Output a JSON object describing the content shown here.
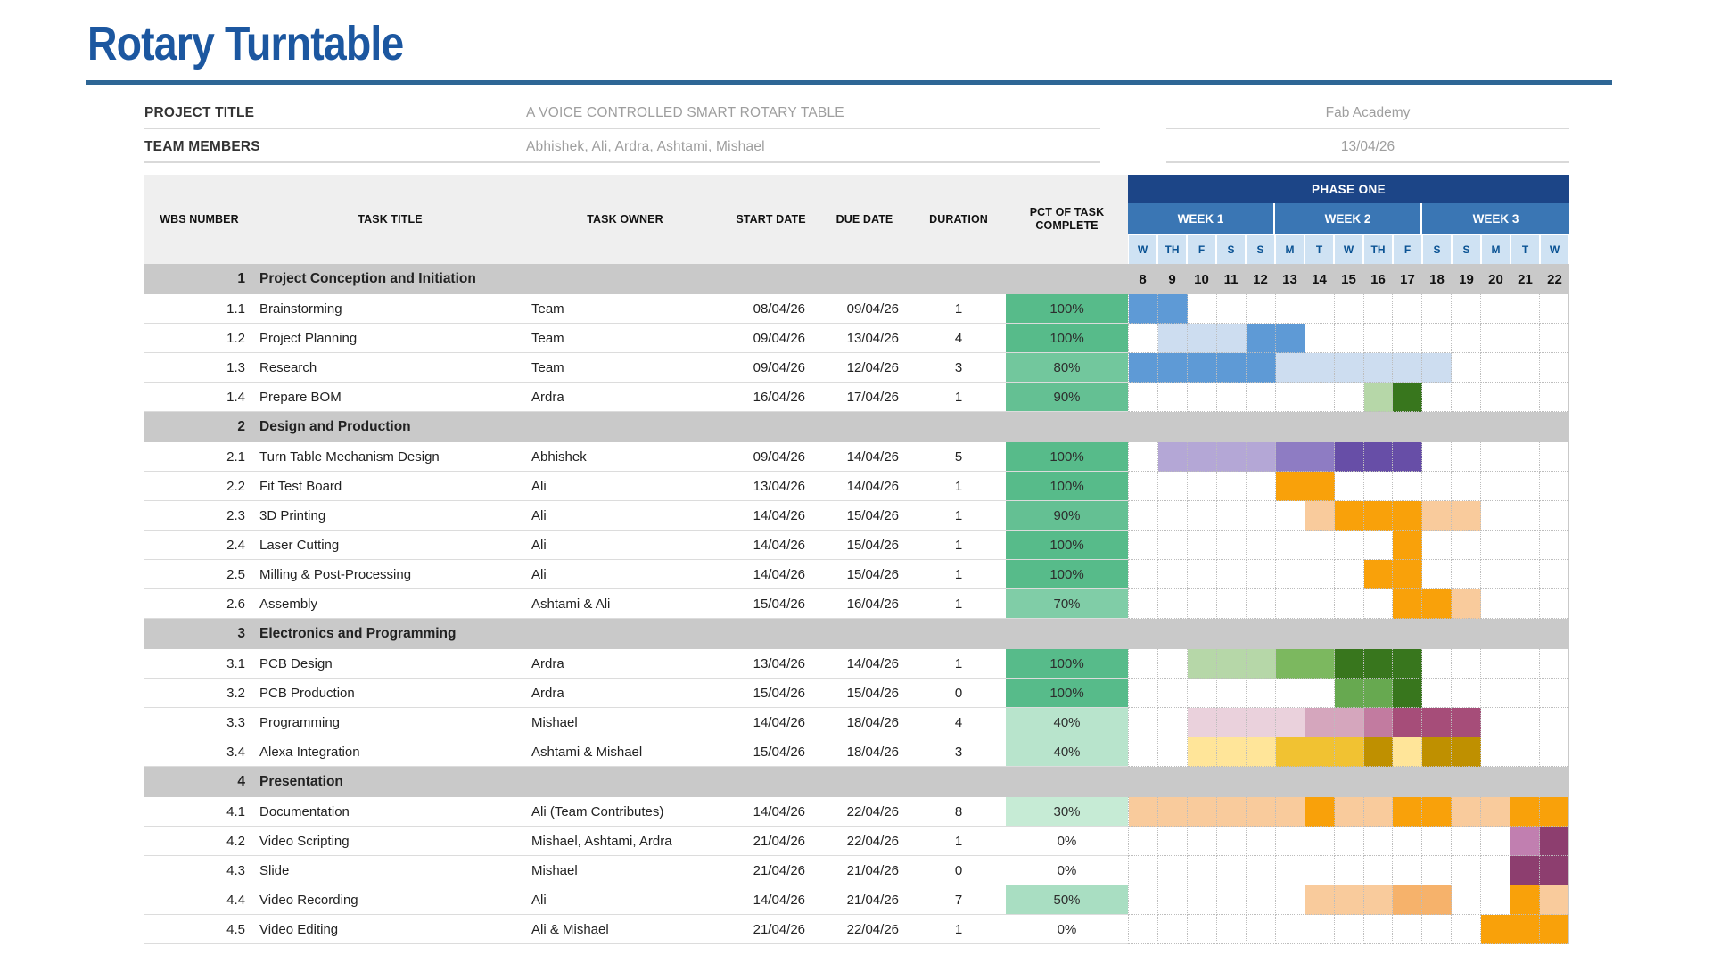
{
  "page": {
    "title": "Rotary Turntable",
    "accent_color": "#1c57a0",
    "rule_color": "#2e6695"
  },
  "info": {
    "rows": [
      {
        "label": "PROJECT TITLE",
        "value": "A VOICE CONTROLLED SMART ROTARY TABLE",
        "right_value": "Fab Academy"
      },
      {
        "label": "TEAM MEMBERS",
        "value": "Abhishek, Ali, Ardra, Ashtami, Mishael",
        "right_value": "13/04/26"
      }
    ]
  },
  "table": {
    "columns": [
      "WBS NUMBER",
      "TASK TITLE",
      "TASK OWNER",
      "START DATE",
      "DUE DATE",
      "DURATION",
      "PCT OF TASK COMPLETE"
    ],
    "gantt": {
      "phase": "PHASE ONE",
      "weeks": [
        "WEEK 1",
        "WEEK 2",
        "WEEK 3"
      ],
      "days": [
        "W",
        "TH",
        "F",
        "S",
        "S",
        "M",
        "T",
        "W",
        "TH",
        "F",
        "S",
        "S",
        "M",
        "T",
        "W"
      ],
      "dates": [
        8,
        9,
        10,
        11,
        12,
        13,
        14,
        15,
        16,
        17,
        18,
        19,
        20,
        21,
        22
      ],
      "header_colors": {
        "phase_bg": "#1c4587",
        "week_bg": "#3a76b4",
        "day_bg": "#cfe2f3",
        "day_text": "#0b5394"
      }
    },
    "palette": {
      "blue": "#5e9ad6",
      "blue_light": "#cdddf0",
      "green_light": "#b6d7a8",
      "green_mid": "#7cb85f",
      "green": "#67a950",
      "green_dark": "#38761d",
      "purple_light": "#b4a7d6",
      "purple_mid": "#8e7cc3",
      "purple_dark": "#674ea7",
      "orange": "#f9a10a",
      "orange_light": "#f9cb9c",
      "orange_mid": "#f6b26b",
      "pink_light": "#ead1dc",
      "pink_mid": "#d5a6bd",
      "pink": "#c27ba0",
      "magenta": "#a64d79",
      "yellow_light": "#ffe599",
      "yellow": "#f1c232",
      "gold": "#bf9000",
      "plum_light": "#c17fb0",
      "plum": "#8d3e6f"
    },
    "pct_colors": {
      "100%": "#57bb8a",
      "90%": "#64c093",
      "80%": "#72c79d",
      "70%": "#80cda7",
      "50%": "#a9dec2",
      "40%": "#b8e4cc",
      "30%": "#c6ebd5",
      "0%": "#ffffff"
    },
    "band_bg": "#c9c9c9",
    "sections": [
      {
        "num": "1",
        "title": "Project Conception and Initiation",
        "show_dates": true,
        "rows": [
          {
            "wbs": "1.1",
            "title": "Brainstorming",
            "owner": "Team",
            "start": "08/04/26",
            "due": "09/04/26",
            "duration": "1",
            "pct": "100%",
            "bars": {
              "8": "blue",
              "9": "blue"
            }
          },
          {
            "wbs": "1.2",
            "title": "Project Planning",
            "owner": "Team",
            "start": "09/04/26",
            "due": "13/04/26",
            "duration": "4",
            "pct": "100%",
            "bars": {
              "9": "blue_light",
              "10": "blue_light",
              "11": "blue_light",
              "12": "blue",
              "13": "blue"
            }
          },
          {
            "wbs": "1.3",
            "title": "Research",
            "owner": "Team",
            "start": "09/04/26",
            "due": "12/04/26",
            "duration": "3",
            "pct": "80%",
            "bars": {
              "8": "blue",
              "9": "blue",
              "10": "blue",
              "11": "blue",
              "12": "blue",
              "13": "blue_light",
              "14": "blue_light",
              "15": "blue_light",
              "16": "blue_light",
              "17": "blue_light",
              "18": "blue_light"
            }
          },
          {
            "wbs": "1.4",
            "title": "Prepare BOM",
            "owner": "Ardra",
            "start": "16/04/26",
            "due": "17/04/26",
            "duration": "1",
            "pct": "90%",
            "bars": {
              "16": "green_light",
              "17": "green_dark"
            }
          }
        ]
      },
      {
        "num": "2",
        "title": "Design and Production",
        "show_dates": false,
        "rows": [
          {
            "wbs": "2.1",
            "title": "Turn Table Mechanism Design",
            "owner": "Abhishek",
            "start": "09/04/26",
            "due": "14/04/26",
            "duration": "5",
            "pct": "100%",
            "bars": {
              "9": "purple_light",
              "10": "purple_light",
              "11": "purple_light",
              "12": "purple_light",
              "13": "purple_mid",
              "14": "purple_mid",
              "15": "purple_dark",
              "16": "purple_dark",
              "17": "purple_dark"
            }
          },
          {
            "wbs": "2.2",
            "title": "Fit Test Board",
            "owner": "Ali",
            "start": "13/04/26",
            "due": "14/04/26",
            "duration": "1",
            "pct": "100%",
            "bars": {
              "13": "orange",
              "14": "orange"
            }
          },
          {
            "wbs": "2.3",
            "title": "3D Printing",
            "owner": "Ali",
            "start": "14/04/26",
            "due": "15/04/26",
            "duration": "1",
            "pct": "90%",
            "bars": {
              "14": "orange_light",
              "15": "orange",
              "16": "orange",
              "17": "orange",
              "18": "orange_light",
              "19": "orange_light"
            }
          },
          {
            "wbs": "2.4",
            "title": "Laser Cutting",
            "owner": "Ali",
            "start": "14/04/26",
            "due": "15/04/26",
            "duration": "1",
            "pct": "100%",
            "bars": {
              "17": "orange"
            }
          },
          {
            "wbs": "2.5",
            "title": "Milling & Post-Processing",
            "owner": "Ali",
            "start": "14/04/26",
            "due": "15/04/26",
            "duration": "1",
            "pct": "100%",
            "bars": {
              "16": "orange",
              "17": "orange"
            }
          },
          {
            "wbs": "2.6",
            "title": "Assembly",
            "owner": "Ashtami & Ali",
            "start": "15/04/26",
            "due": "16/04/26",
            "duration": "1",
            "pct": "70%",
            "bars": {
              "17": "orange",
              "18": "orange",
              "19": "orange_light"
            }
          }
        ]
      },
      {
        "num": "3",
        "title": "Electronics and Programming",
        "show_dates": false,
        "rows": [
          {
            "wbs": "3.1",
            "title": "PCB Design",
            "owner": "Ardra",
            "start": "13/04/26",
            "due": "14/04/26",
            "duration": "1",
            "pct": "100%",
            "bars": {
              "10": "green_light",
              "11": "green_light",
              "12": "green_light",
              "13": "green_mid",
              "14": "green_mid",
              "15": "green_dark",
              "16": "green_dark",
              "17": "green_dark"
            }
          },
          {
            "wbs": "3.2",
            "title": "PCB Production",
            "owner": "Ardra",
            "start": "15/04/26",
            "due": "15/04/26",
            "duration": "0",
            "pct": "100%",
            "bars": {
              "15": "green",
              "16": "green",
              "17": "green_dark"
            }
          },
          {
            "wbs": "3.3",
            "title": "Programming",
            "owner": "Mishael",
            "start": "14/04/26",
            "due": "18/04/26",
            "duration": "4",
            "pct": "40%",
            "bars": {
              "10": "pink_light",
              "11": "pink_light",
              "12": "pink_light",
              "13": "pink_light",
              "14": "pink_mid",
              "15": "pink_mid",
              "16": "pink",
              "17": "magenta",
              "18": "magenta",
              "19": "magenta"
            }
          },
          {
            "wbs": "3.4",
            "title": "Alexa Integration",
            "owner": "Ashtami & Mishael",
            "start": "15/04/26",
            "due": "18/04/26",
            "duration": "3",
            "pct": "40%",
            "bars": {
              "10": "yellow_light",
              "11": "yellow_light",
              "12": "yellow_light",
              "13": "yellow",
              "14": "yellow",
              "15": "yellow",
              "16": "gold",
              "17": "yellow_light",
              "18": "gold",
              "19": "gold"
            }
          }
        ]
      },
      {
        "num": "4",
        "title": "Presentation",
        "show_dates": false,
        "rows": [
          {
            "wbs": "4.1",
            "title": "Documentation",
            "owner": "Ali (Team Contributes)",
            "start": "14/04/26",
            "due": "22/04/26",
            "duration": "8",
            "pct": "30%",
            "bars": {
              "8": "orange_light",
              "9": "orange_light",
              "10": "orange_light",
              "11": "orange_light",
              "12": "orange_light",
              "13": "orange_light",
              "14": "orange",
              "15": "orange_light",
              "16": "orange_light",
              "17": "orange",
              "18": "orange",
              "19": "orange_light",
              "20": "orange_light",
              "21": "orange",
              "22": "orange"
            }
          },
          {
            "wbs": "4.2",
            "title": "Video Scripting",
            "owner": "Mishael, Ashtami, Ardra",
            "start": "21/04/26",
            "due": "22/04/26",
            "duration": "1",
            "pct": "0%",
            "bars": {
              "21": "plum_light",
              "22": "plum"
            }
          },
          {
            "wbs": "4.3",
            "title": "Slide",
            "owner": "Mishael",
            "start": "21/04/26",
            "due": "21/04/26",
            "duration": "0",
            "pct": "0%",
            "bars": {
              "21": "plum",
              "22": "plum"
            }
          },
          {
            "wbs": "4.4",
            "title": "Video Recording",
            "owner": "Ali",
            "start": "14/04/26",
            "due": "21/04/26",
            "duration": "7",
            "pct": "50%",
            "bars": {
              "14": "orange_light",
              "15": "orange_light",
              "16": "orange_light",
              "17": "orange_mid",
              "18": "orange_mid",
              "21": "orange",
              "22": "orange_light"
            }
          },
          {
            "wbs": "4.5",
            "title": "Video Editing",
            "owner": "Ali & Mishael",
            "start": "21/04/26",
            "due": "22/04/26",
            "duration": "1",
            "pct": "0%",
            "bars": {
              "20": "orange",
              "21": "orange",
              "22": "orange"
            }
          }
        ]
      }
    ]
  }
}
